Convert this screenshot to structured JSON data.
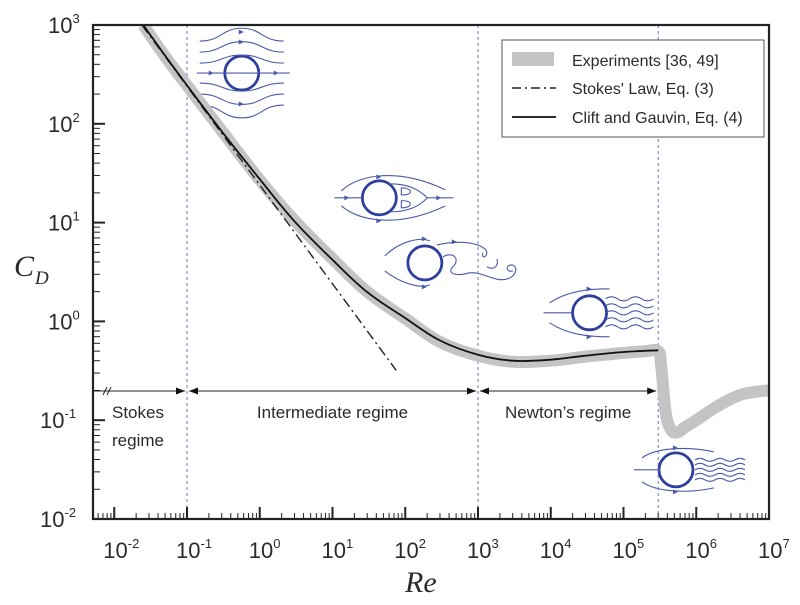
{
  "chart_data": {
    "type": "line",
    "title": "",
    "xlabel": "Re",
    "ylabel": "C_D",
    "ylabel_main": "C",
    "ylabel_sub": "D",
    "xscale": "log",
    "yscale": "log",
    "xlim": [
      0.005,
      10000000
    ],
    "ylim": [
      0.01,
      1000
    ],
    "x_ticks": [
      {
        "base": "10",
        "exp": "-2",
        "value": 0.01
      },
      {
        "base": "10",
        "exp": "-1",
        "value": 0.1
      },
      {
        "base": "10",
        "exp": "0",
        "value": 1
      },
      {
        "base": "10",
        "exp": "1",
        "value": 10
      },
      {
        "base": "10",
        "exp": "2",
        "value": 100
      },
      {
        "base": "10",
        "exp": "3",
        "value": 1000
      },
      {
        "base": "10",
        "exp": "4",
        "value": 10000
      },
      {
        "base": "10",
        "exp": "5",
        "value": 100000
      },
      {
        "base": "10",
        "exp": "6",
        "value": 1000000
      },
      {
        "base": "10",
        "exp": "7",
        "value": 10000000
      }
    ],
    "y_ticks": [
      {
        "base": "10",
        "exp": "-2",
        "value": 0.01
      },
      {
        "base": "10",
        "exp": "-1",
        "value": 0.1
      },
      {
        "base": "10",
        "exp": "0",
        "value": 1
      },
      {
        "base": "10",
        "exp": "1",
        "value": 10
      },
      {
        "base": "10",
        "exp": "2",
        "value": 100
      },
      {
        "base": "10",
        "exp": "3",
        "value": 1000
      }
    ],
    "grid": false,
    "legend_position": "top-right",
    "series": [
      {
        "name": "Experiments [36, 49]",
        "style": "thick-gray-band",
        "color": "#c4c4c4",
        "x": [
          0.025,
          0.05,
          0.1,
          0.3,
          1,
          3,
          10,
          30,
          100,
          300,
          1000,
          3000,
          10000,
          30000,
          100000,
          200000,
          300000,
          330000,
          380000,
          450000,
          550000,
          700000,
          1000000,
          2000000,
          4000000,
          7000000,
          10000000
        ],
        "y": [
          1000,
          480,
          245,
          85,
          27,
          10.5,
          4.3,
          2.0,
          1.07,
          0.62,
          0.45,
          0.39,
          0.4,
          0.44,
          0.48,
          0.5,
          0.5,
          0.35,
          0.12,
          0.08,
          0.075,
          0.085,
          0.1,
          0.14,
          0.18,
          0.195,
          0.2
        ]
      },
      {
        "name": "Stokes' Law, Eq. (3)",
        "style": "dash-dot",
        "color": "#222222",
        "x": [
          0.024,
          75
        ],
        "y": [
          1000,
          0.32
        ]
      },
      {
        "name": "Clift and Gauvin, Eq. (4)",
        "style": "solid",
        "color": "#111111",
        "x": [
          0.025,
          0.05,
          0.1,
          0.3,
          1,
          3,
          10,
          30,
          100,
          300,
          1000,
          3000,
          10000,
          30000,
          100000,
          300000
        ],
        "y": [
          1000,
          490,
          245,
          84,
          27.5,
          10.3,
          4.2,
          1.98,
          1.08,
          0.64,
          0.46,
          0.4,
          0.41,
          0.45,
          0.49,
          0.51
        ]
      }
    ],
    "regime_boundaries": [
      0.1,
      1000,
      300000
    ],
    "regimes": [
      {
        "line1": "Stokes",
        "line2": "regime",
        "from": 0.005,
        "to": 0.1
      },
      {
        "line1": "Intermediate regime",
        "line2": "",
        "from": 0.1,
        "to": 1000
      },
      {
        "line1": "Newton’s regime",
        "line2": "",
        "from": 1000,
        "to": 300000
      }
    ],
    "flow_illustrations": [
      {
        "regime": "creeping flow",
        "re": 1,
        "cd": 350
      },
      {
        "regime": "steady separated wake",
        "re": 50,
        "cd": 17
      },
      {
        "regime": "vortex shedding",
        "re": 600,
        "cd": 4
      },
      {
        "regime": "turbulent wake",
        "re": 40000,
        "cd": 1.25
      },
      {
        "regime": "post-drag-crisis wake",
        "re": 700000,
        "cd": 0.03
      }
    ]
  }
}
